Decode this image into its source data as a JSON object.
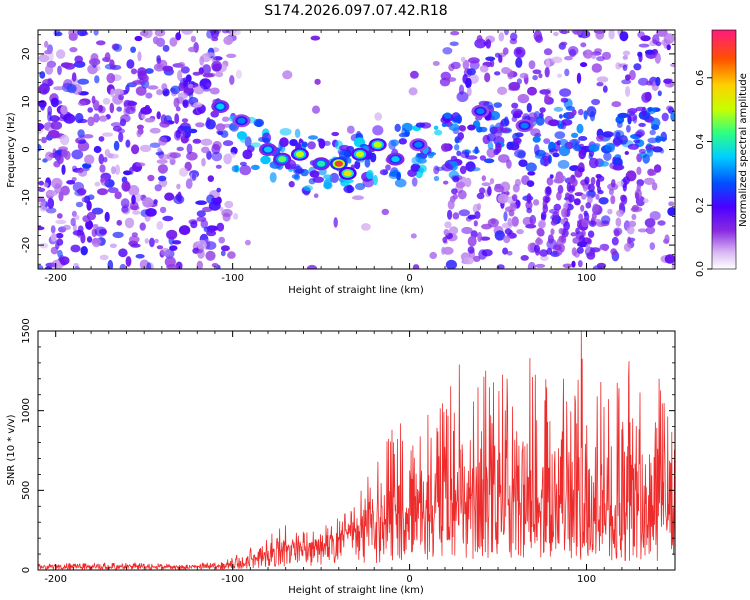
{
  "figure_title": "S174.2026.097.07.42.R18",
  "colors": {
    "axis": "#000000",
    "snr_line": "#ee2b2b",
    "colormap": [
      "#ffffff",
      "#d9b8f4",
      "#8a2be2",
      "#4b00ff",
      "#0050ff",
      "#00d0ff",
      "#30ff80",
      "#c8ff00",
      "#ffd000",
      "#ff5000",
      "#ff1a80"
    ]
  },
  "chart_data": [
    {
      "type": "heatmap",
      "title": "",
      "xlabel": "Height of straight line (km)",
      "ylabel": "Frequency (Hz)",
      "xlim": [
        -210,
        150
      ],
      "ylim": [
        -25,
        25
      ],
      "xticks": [
        -200,
        -100,
        0,
        100
      ],
      "xtick_labels": [
        "-200",
        "-100",
        "0",
        "100"
      ],
      "yticks": [
        -20,
        -10,
        0,
        10,
        20
      ],
      "ytick_labels": [
        "-20",
        "-10",
        "0",
        "10",
        "20"
      ],
      "colorbar": {
        "label": "Normalized spectral amplitude",
        "range": [
          0.0,
          0.75
        ],
        "ticks": [
          0.0,
          0.2,
          0.4,
          0.6
        ],
        "tick_labels": [
          "0.0",
          "0.2",
          "0.4",
          "0.6"
        ]
      },
      "features": {
        "ridge_center_hz": [
          [
            -100,
            2
          ],
          [
            -80,
            0
          ],
          [
            -60,
            -3
          ],
          [
            -40,
            -4
          ],
          [
            -20,
            -2
          ],
          [
            0,
            -1
          ],
          [
            20,
            0
          ],
          [
            40,
            2
          ],
          [
            60,
            3
          ],
          [
            80,
            3
          ],
          [
            100,
            3
          ],
          [
            120,
            4
          ],
          [
            145,
            5
          ]
        ],
        "strong_patches": [
          {
            "x": -107,
            "y": 9,
            "v": 0.35
          },
          {
            "x": -95,
            "y": 6,
            "v": 0.3
          },
          {
            "x": -80,
            "y": 0,
            "v": 0.35
          },
          {
            "x": -72,
            "y": -2,
            "v": 0.45
          },
          {
            "x": -62,
            "y": -1,
            "v": 0.5
          },
          {
            "x": -50,
            "y": -3,
            "v": 0.4
          },
          {
            "x": -40,
            "y": -3,
            "v": 0.7
          },
          {
            "x": -35,
            "y": -5,
            "v": 0.55
          },
          {
            "x": -28,
            "y": -1,
            "v": 0.5
          },
          {
            "x": -18,
            "y": 1,
            "v": 0.5
          },
          {
            "x": -8,
            "y": -2,
            "v": 0.35
          },
          {
            "x": 5,
            "y": 1,
            "v": 0.3
          },
          {
            "x": 40,
            "y": 8,
            "v": 0.3
          },
          {
            "x": 65,
            "y": 5,
            "v": 0.3
          }
        ]
      }
    },
    {
      "type": "line",
      "title": "",
      "xlabel": "Height of straight line (km)",
      "ylabel": "SNR (10 * v/v)",
      "xlim": [
        -210,
        150
      ],
      "ylim": [
        0,
        1500
      ],
      "xticks": [
        -200,
        -100,
        0,
        100
      ],
      "xtick_labels": [
        "-200",
        "-100",
        "0",
        "100"
      ],
      "yticks": [
        0,
        500,
        1000,
        1500
      ],
      "ytick_labels": [
        "0",
        "500",
        "1000",
        "1500"
      ],
      "series": [
        {
          "name": "SNR",
          "x": [
            -210,
            -180,
            -150,
            -120,
            -105,
            -95,
            -85,
            -75,
            -65,
            -55,
            -45,
            -35,
            -25,
            -15,
            -5,
            0,
            10,
            20,
            30,
            40,
            50,
            60,
            70,
            80,
            90,
            100,
            110,
            120,
            130,
            140,
            150
          ],
          "mean": [
            20,
            20,
            20,
            20,
            25,
            45,
            80,
            130,
            150,
            140,
            160,
            210,
            260,
            300,
            330,
            350,
            380,
            400,
            420,
            430,
            420,
            420,
            400,
            400,
            390,
            390,
            380,
            370,
            370,
            360,
            340
          ],
          "max": [
            40,
            45,
            45,
            40,
            60,
            120,
            190,
            280,
            240,
            240,
            300,
            380,
            560,
            800,
            900,
            780,
            1000,
            1150,
            1280,
            1250,
            1200,
            1330,
            1250,
            1200,
            1100,
            1500,
            1200,
            1300,
            1150,
            1200,
            1050
          ],
          "peaks": [
            [
              -70,
              280
            ],
            [
              -60,
              240
            ],
            [
              -33,
              370
            ],
            [
              -18,
              680
            ],
            [
              -10,
              880
            ],
            [
              -5,
              920
            ],
            [
              28,
              1290
            ],
            [
              43,
              1250
            ],
            [
              55,
              1200
            ],
            [
              68,
              1330
            ],
            [
              87,
              1200
            ],
            [
              97,
              1500
            ],
            [
              108,
              1180
            ],
            [
              124,
              1310
            ],
            [
              141,
              1200
            ]
          ]
        }
      ]
    }
  ]
}
